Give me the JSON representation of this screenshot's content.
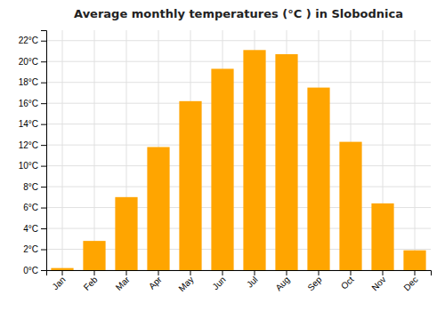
{
  "chart_data": {
    "type": "bar",
    "title": "Average monthly temperatures (°C ) in Slobodnica",
    "categories": [
      "Jan",
      "Feb",
      "Mar",
      "Apr",
      "May",
      "Jun",
      "Jul",
      "Aug",
      "Sep",
      "Oct",
      "Nov",
      "Dec"
    ],
    "values": [
      0.2,
      2.8,
      7.0,
      11.8,
      16.2,
      19.3,
      21.1,
      20.7,
      17.5,
      12.3,
      6.4,
      1.9
    ],
    "color": "#FFA500",
    "ylim": [
      0,
      23
    ],
    "yticks": [
      {
        "value": 0,
        "label": "0°C"
      },
      {
        "value": 2,
        "label": "2°C"
      },
      {
        "value": 4,
        "label": "4°C"
      },
      {
        "value": 6,
        "label": "6°C"
      },
      {
        "value": 8,
        "label": "8°C"
      },
      {
        "value": 10,
        "label": "10°C"
      },
      {
        "value": 12,
        "label": "12°C"
      },
      {
        "value": 14,
        "label": "14°C"
      },
      {
        "value": 16,
        "label": "16°C"
      },
      {
        "value": 18,
        "label": "18°C"
      },
      {
        "value": 20,
        "label": "20°C"
      },
      {
        "value": 22,
        "label": "22°C"
      }
    ],
    "grid": true
  }
}
